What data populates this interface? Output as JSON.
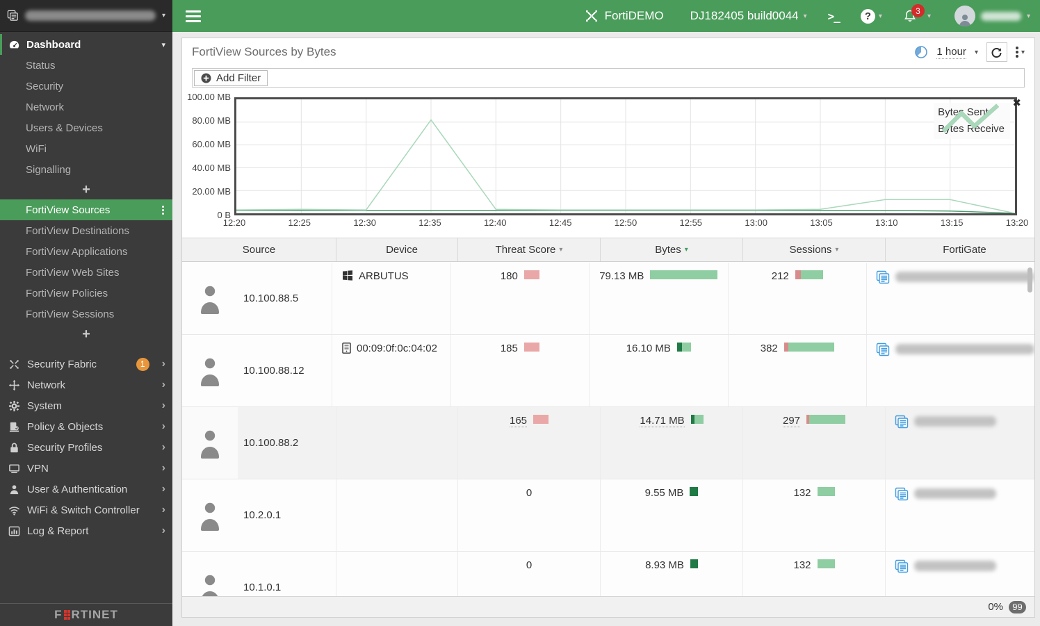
{
  "topbar": {
    "brand": "FortiDEMO",
    "firmware": "DJ182405 build0044",
    "terminal_icon": ">_",
    "help_icon": "?",
    "notifications": "3"
  },
  "sidebar": {
    "dashboard": {
      "label": "Dashboard",
      "items": [
        "Status",
        "Security",
        "Network",
        "Users & Devices",
        "WiFi",
        "Signalling"
      ],
      "add": "+"
    },
    "fortiview": {
      "selected": "FortiView Sources",
      "items": [
        "FortiView Destinations",
        "FortiView Applications",
        "FortiView Web Sites",
        "FortiView Policies",
        "FortiView Sessions"
      ],
      "add": "+"
    },
    "sections": [
      {
        "label": "Security Fabric",
        "badge": "1"
      },
      {
        "label": "Network"
      },
      {
        "label": "System"
      },
      {
        "label": "Policy & Objects"
      },
      {
        "label": "Security Profiles"
      },
      {
        "label": "VPN"
      },
      {
        "label": "User & Authentication"
      },
      {
        "label": "WiFi & Switch Controller"
      },
      {
        "label": "Log & Report"
      }
    ],
    "logo_prefix": "F",
    "logo_suffix": "RTINET"
  },
  "main": {
    "title": "FortiView Sources by Bytes",
    "toolbar": {
      "time_range": "1 hour"
    },
    "filter": {
      "add_filter": "Add Filter"
    },
    "chart_data": {
      "type": "line",
      "x": [
        "12:20",
        "12:25",
        "12:30",
        "12:35",
        "12:40",
        "12:45",
        "12:50",
        "12:55",
        "13:00",
        "13:05",
        "13:10",
        "13:15",
        "13:20"
      ],
      "y_tick_labels": [
        "100.00 MB",
        "80.00 MB",
        "60.00 MB",
        "40.00 MB",
        "20.00 MB",
        "0 B"
      ],
      "ylim_mb": [
        0,
        100
      ],
      "grid": true,
      "legend_position": "top-right",
      "series": [
        {
          "name": "Bytes Sent",
          "color": "#4e9e72",
          "values_mb": [
            2.5,
            2.5,
            2.5,
            2.5,
            2.5,
            2.5,
            2.5,
            2.5,
            2.5,
            2.5,
            2.5,
            2,
            0
          ]
        },
        {
          "name": "Bytes Receive",
          "color": "#a9d8ba",
          "values_mb": [
            3,
            3.5,
            3,
            82,
            3.5,
            3,
            3,
            3,
            3,
            3.5,
            12,
            12,
            0
          ]
        }
      ]
    },
    "table": {
      "columns": [
        {
          "label": "Source",
          "sort": "none"
        },
        {
          "label": "Device",
          "sort": "none"
        },
        {
          "label": "Threat Score",
          "sort": "inactive"
        },
        {
          "label": "Bytes",
          "sort": "active"
        },
        {
          "label": "Sessions",
          "sort": "inactive"
        },
        {
          "label": "FortiGate",
          "sort": "none"
        }
      ],
      "rows": [
        {
          "source": "10.100.88.5",
          "device": "ARBUTUS",
          "threat_score": "180",
          "bytes": "79.13 MB",
          "bytes_mb": 79.13,
          "bytes_sent_pct": 0,
          "sessions": "212",
          "sessions_red_pct": 20,
          "highlighted": false
        },
        {
          "source": "10.100.88.12",
          "device": "00:09:0f:0c:04:02",
          "threat_score": "185",
          "bytes": "16.10 MB",
          "bytes_mb": 16.1,
          "bytes_sent_pct": 35,
          "sessions": "382",
          "sessions_red_pct": 8,
          "highlighted": false
        },
        {
          "source": "10.100.88.2",
          "device": "",
          "threat_score": "165",
          "bytes": "14.71 MB",
          "bytes_mb": 14.71,
          "bytes_sent_pct": 30,
          "sessions": "297",
          "sessions_red_pct": 6,
          "highlighted": true
        },
        {
          "source": "10.2.0.1",
          "device": "",
          "threat_score": "0",
          "bytes": "9.55 MB",
          "bytes_mb": 9.55,
          "bytes_sent_pct": 100,
          "sessions": "132",
          "sessions_red_pct": 0,
          "highlighted": false
        },
        {
          "source": "10.1.0.1",
          "device": "",
          "threat_score": "0",
          "bytes": "8.93 MB",
          "bytes_mb": 8.93,
          "bytes_sent_pct": 100,
          "sessions": "132",
          "sessions_red_pct": 0,
          "highlighted": false
        }
      ]
    },
    "footer": {
      "progress": "0%",
      "badge": "99"
    }
  },
  "colors": {
    "topbar_green": "#4a9c5a",
    "bar_green_light": "#8fcda2",
    "bar_green_dark": "#1f7a46",
    "bar_red": "#e9a7a7",
    "sessions_red": "#d98b8b",
    "badge_orange": "#e8963c",
    "notification_red": "#d42b2b",
    "link_blue": "#3d9be0"
  }
}
